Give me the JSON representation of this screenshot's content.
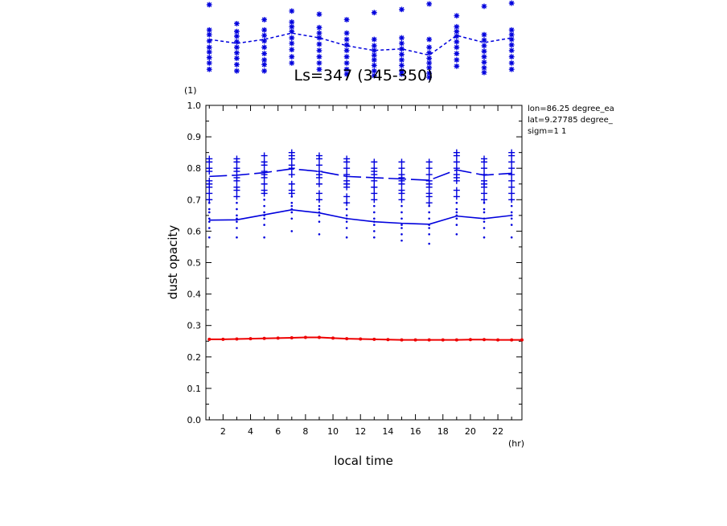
{
  "chart_data": {
    "type": "line",
    "title": "Ls=347 (345-350)",
    "xlabel": "local time",
    "xunit": "(hr)",
    "ylabel": "dust opacity",
    "yunit": "(1)",
    "xlim": [
      0.75,
      23.75
    ],
    "ylim": [
      0.0,
      1.0
    ],
    "xticks": [
      2,
      4,
      6,
      8,
      10,
      12,
      14,
      16,
      18,
      20,
      22
    ],
    "xtick_labels": [
      "2",
      "4",
      "6",
      "8",
      "10",
      "12",
      "14",
      "16",
      "18",
      "20",
      "22"
    ],
    "yticks": [
      0.0,
      0.1,
      0.2,
      0.3,
      0.4,
      0.5,
      0.6,
      0.7,
      0.8,
      0.9,
      1.0
    ],
    "ytick_labels": [
      "0.0",
      "0.1",
      "0.2",
      "0.3",
      "0.4",
      "0.5",
      "0.6",
      "0.7",
      "0.8",
      "0.9",
      "1.0"
    ],
    "info_text": [
      "lon=86.25 degree_ea",
      "lat=9.27785 degree_",
      "sigm=1 1"
    ],
    "colors": {
      "blue": "#0000dd",
      "red": "#ee0000",
      "axes": "#000000"
    },
    "x": [
      1,
      3,
      5,
      7,
      9,
      11,
      13,
      15,
      17,
      19,
      21,
      23
    ],
    "series": [
      {
        "style": "dashed-mean-plus-markers",
        "color": "#0000dd",
        "mean": [
          0.774,
          0.778,
          0.786,
          0.798,
          0.79,
          0.774,
          0.77,
          0.766,
          0.762,
          0.795,
          0.778,
          0.784
        ],
        "samples": [
          [
            0.83,
            0.82,
            0.8,
            0.79,
            0.75,
            0.74,
            0.72,
            0.7,
            0.76
          ],
          [
            0.83,
            0.82,
            0.8,
            0.79,
            0.76,
            0.74,
            0.73,
            0.71,
            0.77
          ],
          [
            0.84,
            0.82,
            0.81,
            0.79,
            0.77,
            0.75,
            0.73,
            0.72,
            0.78
          ],
          [
            0.85,
            0.84,
            0.83,
            0.81,
            0.8,
            0.78,
            0.75,
            0.73,
            0.72
          ],
          [
            0.84,
            0.83,
            0.81,
            0.79,
            0.77,
            0.75,
            0.72,
            0.7,
            0.78
          ],
          [
            0.83,
            0.82,
            0.8,
            0.78,
            0.76,
            0.74,
            0.71,
            0.69,
            0.75
          ],
          [
            0.82,
            0.8,
            0.78,
            0.76,
            0.74,
            0.74,
            0.72,
            0.7,
            0.79
          ],
          [
            0.82,
            0.8,
            0.78,
            0.77,
            0.75,
            0.73,
            0.72,
            0.7,
            0.76
          ],
          [
            0.82,
            0.8,
            0.78,
            0.76,
            0.74,
            0.72,
            0.71,
            0.69,
            0.75
          ],
          [
            0.85,
            0.84,
            0.82,
            0.8,
            0.78,
            0.76,
            0.73,
            0.71,
            0.77
          ],
          [
            0.83,
            0.82,
            0.8,
            0.78,
            0.76,
            0.74,
            0.72,
            0.7,
            0.75
          ],
          [
            0.85,
            0.84,
            0.82,
            0.8,
            0.78,
            0.76,
            0.74,
            0.72,
            0.7
          ]
        ]
      },
      {
        "style": "solid-mean-plus-dots",
        "color": "#0000dd",
        "mean": [
          0.635,
          0.636,
          0.652,
          0.668,
          0.658,
          0.64,
          0.63,
          0.625,
          0.622,
          0.648,
          0.64,
          0.65
        ],
        "samples": [
          [
            0.69,
            0.67,
            0.66,
            0.64,
            0.63,
            0.61,
            0.58
          ],
          [
            0.69,
            0.67,
            0.65,
            0.64,
            0.63,
            0.61,
            0.58
          ],
          [
            0.7,
            0.68,
            0.66,
            0.65,
            0.64,
            0.62,
            0.58
          ],
          [
            0.71,
            0.69,
            0.68,
            0.67,
            0.66,
            0.64,
            0.6
          ],
          [
            0.7,
            0.68,
            0.67,
            0.66,
            0.65,
            0.63,
            0.59
          ],
          [
            0.69,
            0.67,
            0.65,
            0.64,
            0.63,
            0.61,
            0.58
          ],
          [
            0.68,
            0.66,
            0.64,
            0.63,
            0.62,
            0.6,
            0.58
          ],
          [
            0.68,
            0.66,
            0.64,
            0.62,
            0.61,
            0.59,
            0.57
          ],
          [
            0.68,
            0.66,
            0.64,
            0.62,
            0.61,
            0.59,
            0.56
          ],
          [
            0.69,
            0.67,
            0.66,
            0.65,
            0.64,
            0.62,
            0.59
          ],
          [
            0.69,
            0.67,
            0.66,
            0.64,
            0.63,
            0.61,
            0.58
          ],
          [
            0.7,
            0.68,
            0.66,
            0.65,
            0.64,
            0.62,
            0.58
          ]
        ]
      },
      {
        "style": "solid-line-with-dots",
        "color": "#ee0000",
        "x": [
          1,
          2,
          3,
          4,
          5,
          6,
          7,
          8,
          9,
          10,
          11,
          12,
          13,
          14,
          15,
          16,
          17,
          18,
          19,
          20,
          21,
          22,
          23,
          23.75
        ],
        "values": [
          0.256,
          0.256,
          0.257,
          0.258,
          0.259,
          0.26,
          0.261,
          0.262,
          0.262,
          0.26,
          0.258,
          0.257,
          0.256,
          0.255,
          0.254,
          0.254,
          0.254,
          0.254,
          0.254,
          0.255,
          0.255,
          0.254,
          0.254,
          0.254
        ]
      }
    ],
    "clipped_top_panel": {
      "color": "#0000dd",
      "x": [
        1,
        3,
        5,
        7,
        9,
        11,
        13,
        15,
        17,
        19,
        21,
        23
      ],
      "mean": [
        0.5,
        0.45,
        0.5,
        0.58,
        0.52,
        0.42,
        0.36,
        0.38,
        0.3,
        0.55,
        0.46,
        0.52
      ],
      "samples": [
        [
          0.94,
          0.62,
          0.56,
          0.48,
          0.4,
          0.34,
          0.27,
          0.2,
          0.12
        ],
        [
          0.7,
          0.6,
          0.54,
          0.47,
          0.4,
          0.33,
          0.26,
          0.18,
          0.1
        ],
        [
          0.75,
          0.62,
          0.55,
          0.48,
          0.4,
          0.32,
          0.24,
          0.18,
          0.1
        ],
        [
          0.86,
          0.72,
          0.66,
          0.6,
          0.52,
          0.45,
          0.37,
          0.28,
          0.2
        ],
        [
          0.82,
          0.65,
          0.58,
          0.52,
          0.44,
          0.36,
          0.28,
          0.2,
          0.12
        ],
        [
          0.75,
          0.58,
          0.5,
          0.43,
          0.36,
          0.28,
          0.2,
          0.12,
          0.06
        ],
        [
          0.84,
          0.5,
          0.42,
          0.36,
          0.3,
          0.24,
          0.17,
          0.1,
          0.04
        ],
        [
          0.88,
          0.52,
          0.45,
          0.38,
          0.31,
          0.24,
          0.17,
          0.1,
          0.06
        ],
        [
          0.95,
          0.5,
          0.4,
          0.33,
          0.26,
          0.2,
          0.14,
          0.07,
          0.02
        ],
        [
          0.8,
          0.66,
          0.6,
          0.54,
          0.47,
          0.4,
          0.32,
          0.24,
          0.16
        ],
        [
          0.92,
          0.56,
          0.49,
          0.42,
          0.35,
          0.28,
          0.21,
          0.14,
          0.08
        ],
        [
          0.96,
          0.62,
          0.56,
          0.5,
          0.43,
          0.36,
          0.28,
          0.2,
          0.12
        ]
      ]
    }
  }
}
